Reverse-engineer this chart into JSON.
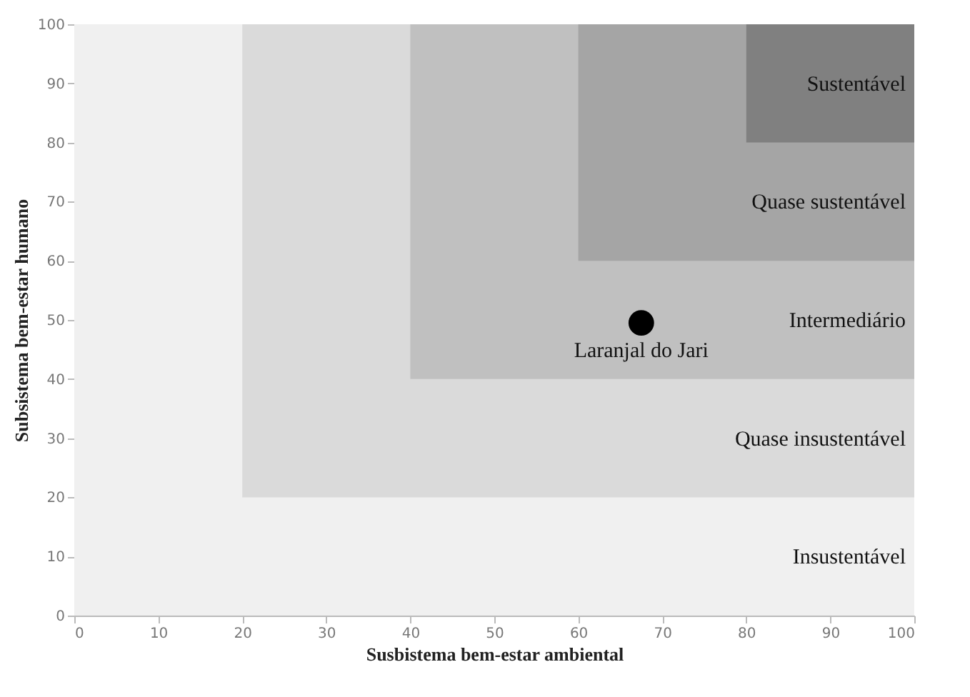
{
  "chart_data": {
    "type": "scatter",
    "xlabel": "Susbistema bem-estar ambiental",
    "ylabel": "Subsistema bem-estar humano",
    "x": [
      67.5
    ],
    "series": [
      {
        "color": "#000000",
        "values": [
          49.5
        ]
      }
    ],
    "xlim": [
      0,
      100
    ],
    "ylim": [
      0,
      100
    ],
    "xticks": [
      0,
      10,
      20,
      30,
      40,
      50,
      60,
      70,
      80,
      90,
      100
    ],
    "yticks": [
      0,
      10,
      20,
      30,
      40,
      50,
      60,
      70,
      80,
      90,
      100
    ],
    "grid": false,
    "marker": "circle",
    "bands": [
      {
        "axis": "x",
        "from": 0,
        "to": 100,
        "label": "Insustentável",
        "color": "#f0f0f0"
      },
      {
        "axis": "x",
        "from": 20,
        "to": 100,
        "label": "Quase insustentável",
        "color": "#dadada"
      },
      {
        "axis": "x",
        "from": 40,
        "to": 100,
        "label": "Intermediário",
        "color": "#c0c0c0"
      },
      {
        "axis": "x",
        "from": 60,
        "to": 100,
        "label": "Quase sustentável",
        "color": "#a5a5a5"
      },
      {
        "axis": "x",
        "from": 80,
        "to": 100,
        "label": "Sustentável",
        "color": "#808080"
      }
    ],
    "annotations": [
      {
        "text": "Laranjal do Jari",
        "x": 67.5,
        "y": 49.5
      }
    ]
  }
}
